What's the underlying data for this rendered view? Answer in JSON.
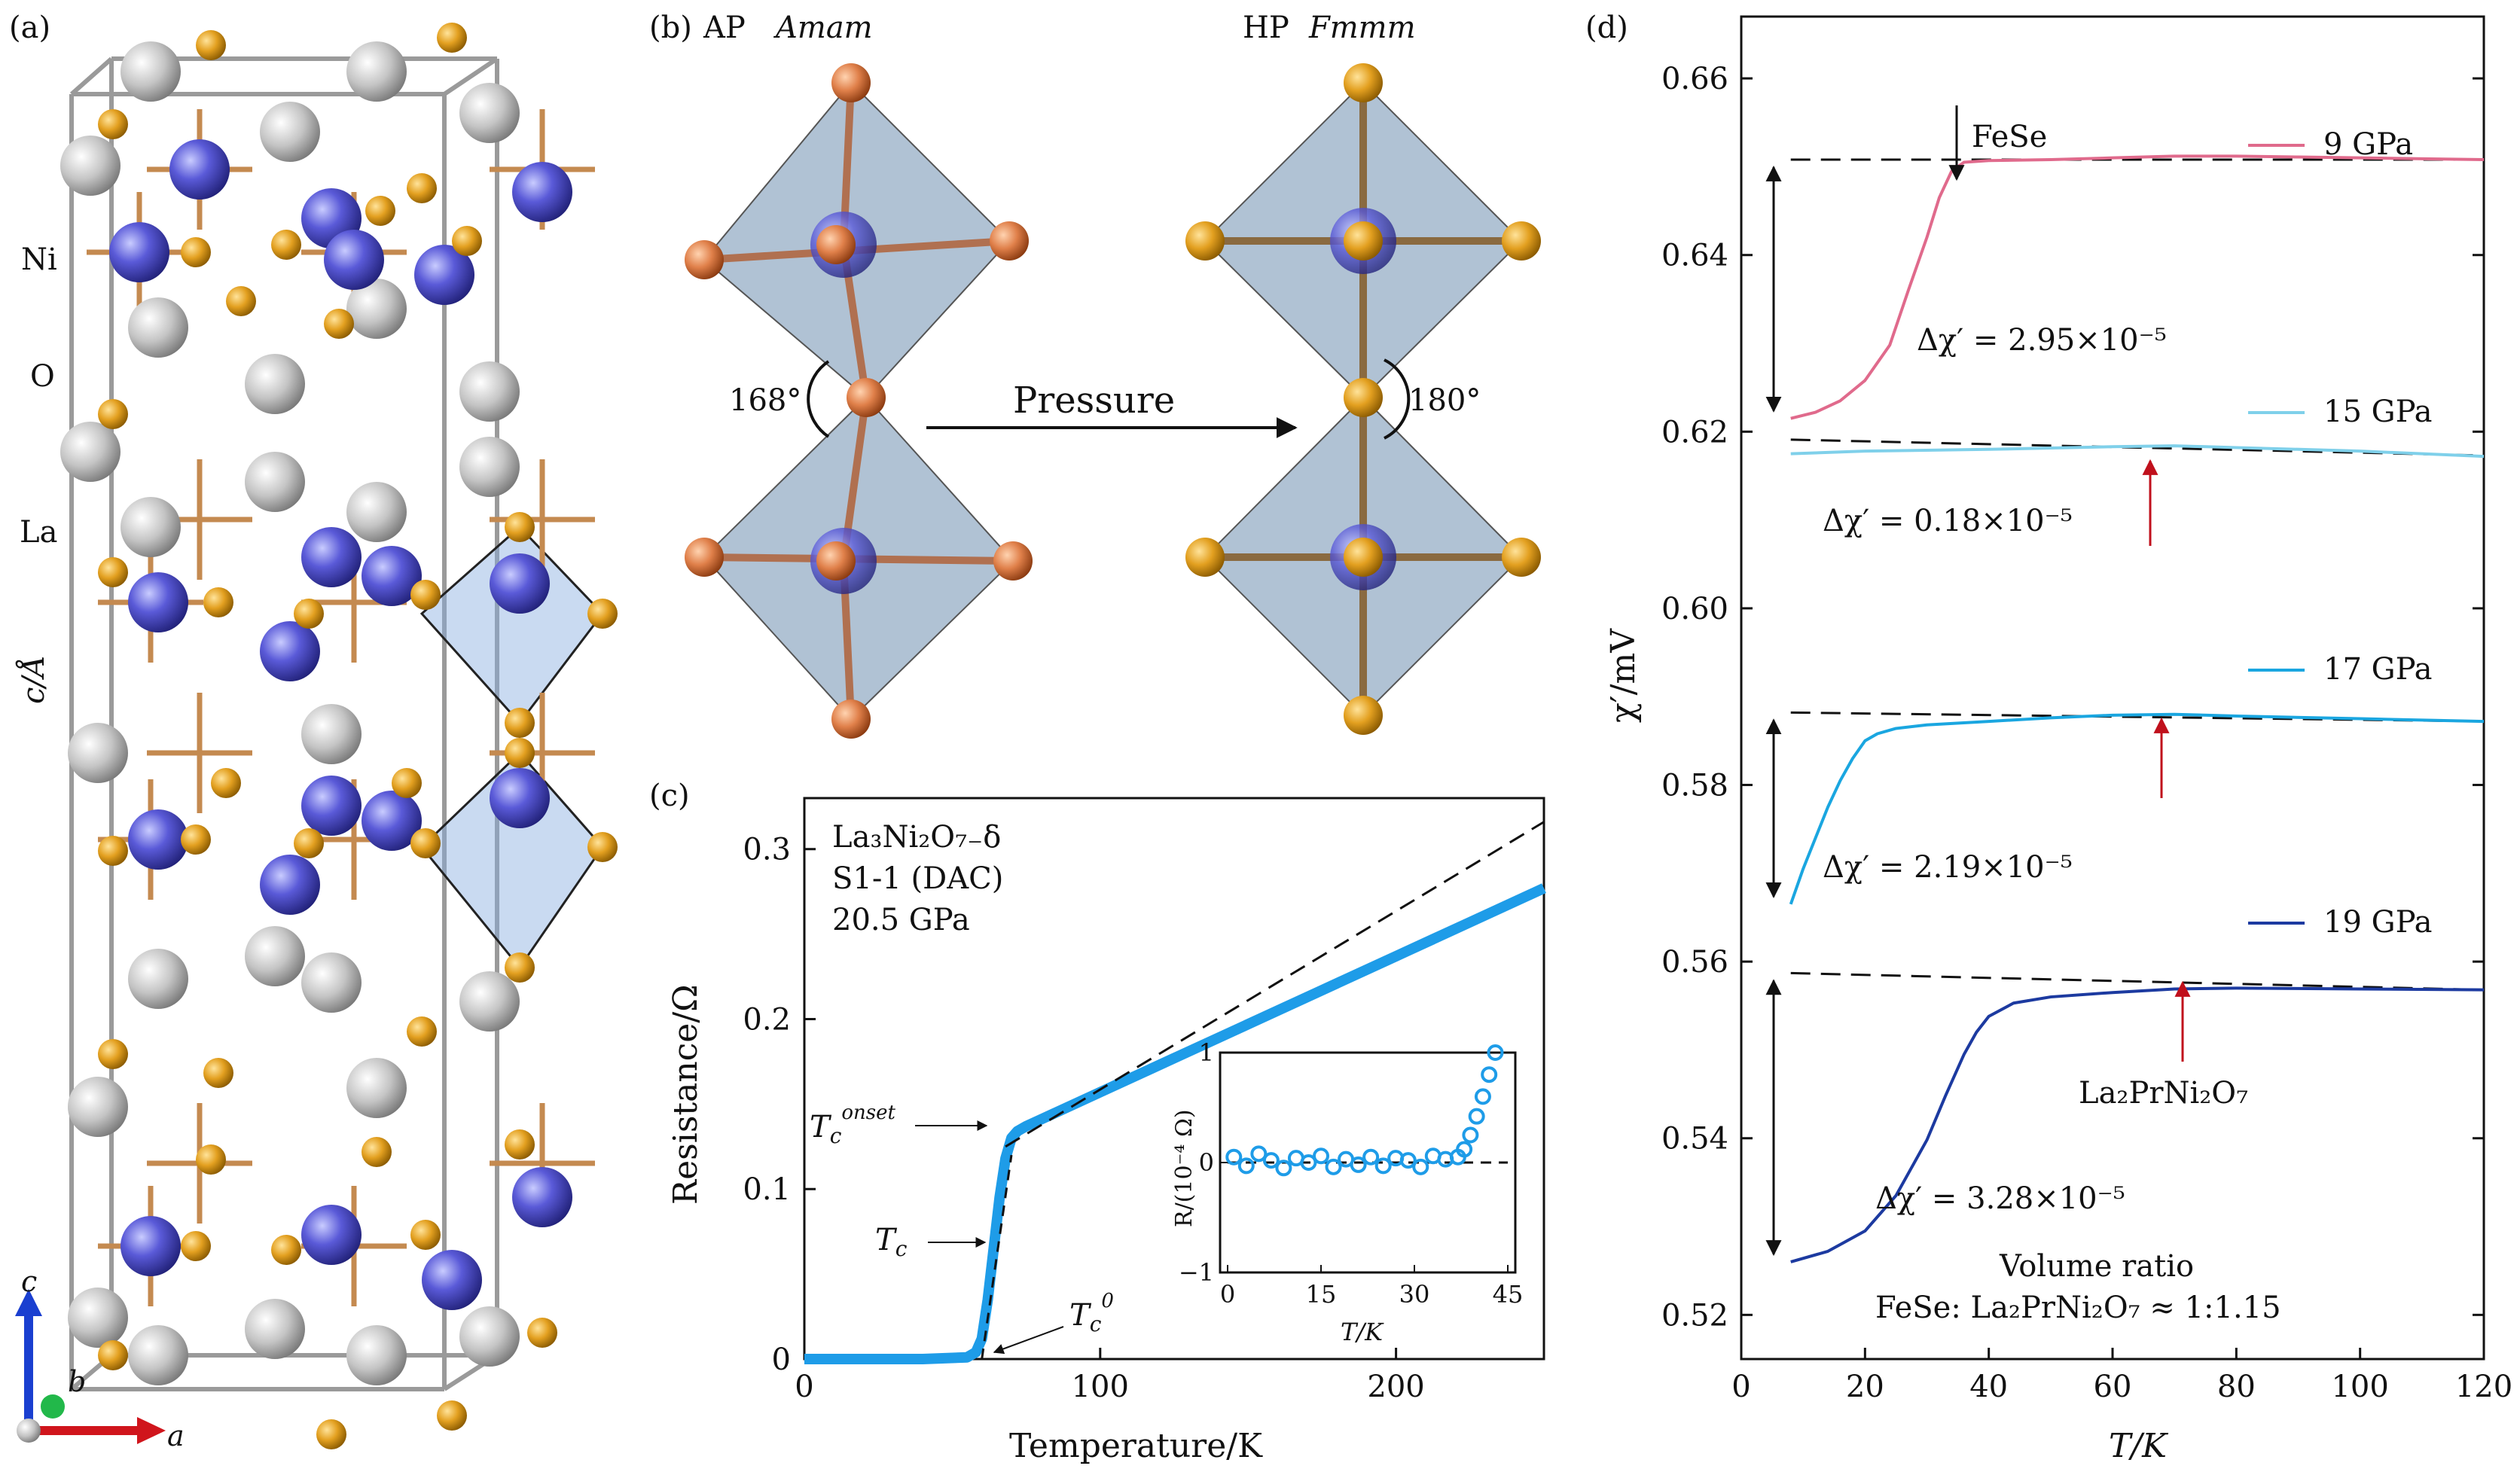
{
  "panels": {
    "a": {
      "label": "(a)",
      "atoms": [
        "Ni",
        "O",
        "La"
      ],
      "axis_label": "c/Å",
      "basis": {
        "c": "c",
        "b": "b",
        "a": "a"
      }
    },
    "b": {
      "label": "(b)",
      "left_title": "AP",
      "left_group": "Amam",
      "right_title": "HP",
      "right_group": "Fmmm",
      "angle_left": "168°",
      "angle_right": "180°",
      "arrow_label": "Pressure"
    },
    "c": {
      "label": "(c)"
    },
    "d": {
      "label": "(d)"
    }
  },
  "chart_data": [
    {
      "id": "c",
      "type": "line",
      "xlabel": "Temperature/K",
      "ylabel": "Resistance/Ω",
      "xlim": [
        0,
        250
      ],
      "ylim": [
        0,
        0.33
      ],
      "xticks": [
        0,
        100,
        200
      ],
      "yticks": [
        0,
        0.1,
        0.2,
        0.3
      ],
      "xtick_labels": [
        "0",
        "100",
        "200"
      ],
      "ytick_labels": [
        "0",
        "0.1",
        "0.2",
        "0.3"
      ],
      "info": [
        "La₃Ni₂O₇₋δ",
        "S1-1 (DAC)",
        "20.5 GPa"
      ],
      "annotations": {
        "tc_onset": "T_c^onset",
        "tc": "T_c",
        "tc0": "T_c^0"
      },
      "color": "#1e9ce8",
      "series": [
        {
          "x": [
            0,
            20,
            40,
            55,
            58,
            60,
            62,
            64,
            66,
            68,
            70,
            72,
            75,
            80,
            100,
            125,
            150,
            175,
            200,
            225,
            250
          ],
          "y": [
            0,
            0,
            0,
            0.001,
            0.004,
            0.012,
            0.035,
            0.065,
            0.095,
            0.118,
            0.13,
            0.134,
            0.137,
            0.141,
            0.157,
            0.177,
            0.197,
            0.217,
            0.237,
            0.257,
            0.277
          ]
        }
      ],
      "fit_line": {
        "x": [
          68,
          250
        ],
        "y": [
          0.125,
          0.316
        ]
      },
      "inset": {
        "xlabel": "T/K",
        "ylabel": "R/(10⁻⁴ Ω)",
        "xlim": [
          0,
          45
        ],
        "ylim": [
          -1,
          1
        ],
        "xticks": [
          0,
          15,
          30,
          45
        ],
        "yticks": [
          -1,
          0,
          1
        ],
        "xtick_labels": [
          "0",
          "15",
          "30",
          "45"
        ],
        "ytick_labels": [
          "−1",
          "0",
          "1"
        ],
        "x": [
          1,
          3,
          5,
          7,
          9,
          11,
          13,
          15,
          17,
          19,
          21,
          23,
          25,
          27,
          29,
          31,
          33,
          35,
          37,
          38,
          39,
          40,
          41,
          42,
          43
        ],
        "y": [
          0.05,
          -0.03,
          0.08,
          0.02,
          -0.05,
          0.04,
          0.0,
          0.06,
          -0.04,
          0.03,
          -0.02,
          0.05,
          -0.03,
          0.04,
          0.02,
          -0.04,
          0.06,
          0.03,
          0.05,
          0.12,
          0.25,
          0.42,
          0.6,
          0.8,
          1.0
        ]
      }
    },
    {
      "id": "d",
      "type": "line",
      "xlabel": "T/K",
      "ylabel": "χ′/mV",
      "xlim": [
        0,
        120
      ],
      "ylim": [
        0.515,
        0.667
      ],
      "xticks": [
        0,
        20,
        40,
        60,
        80,
        100,
        120
      ],
      "yticks": [
        0.52,
        0.54,
        0.56,
        0.58,
        0.6,
        0.62,
        0.64,
        0.66
      ],
      "xtick_labels": [
        "0",
        "20",
        "40",
        "60",
        "80",
        "100",
        "120"
      ],
      "ytick_labels": [
        "0.52",
        "0.54",
        "0.56",
        "0.58",
        "0.60",
        "0.62",
        "0.64",
        "0.66"
      ],
      "series": [
        {
          "name": "9 GPa",
          "color": "#e06a8c",
          "x": [
            8,
            12,
            16,
            20,
            24,
            27,
            30,
            32,
            34,
            36,
            40,
            50,
            60,
            70,
            80,
            90,
            100,
            110,
            120
          ],
          "y": [
            0.6215,
            0.6222,
            0.6235,
            0.6258,
            0.6298,
            0.636,
            0.642,
            0.6465,
            0.6495,
            0.6505,
            0.6507,
            0.6508,
            0.651,
            0.6512,
            0.6512,
            0.6511,
            0.651,
            0.6509,
            0.6508
          ]
        },
        {
          "name": "15 GPa",
          "color": "#7fd0ea",
          "x": [
            8,
            20,
            40,
            60,
            70,
            80,
            100,
            120
          ],
          "y": [
            0.6175,
            0.6178,
            0.618,
            0.6183,
            0.6184,
            0.6182,
            0.6178,
            0.6172
          ]
        },
        {
          "name": "17 GPa",
          "color": "#1aa6e0",
          "x": [
            8,
            10,
            12,
            14,
            16,
            18,
            20,
            22,
            25,
            30,
            40,
            50,
            60,
            70,
            80,
            100,
            120
          ],
          "y": [
            0.5665,
            0.5705,
            0.574,
            0.5775,
            0.5805,
            0.583,
            0.585,
            0.5858,
            0.5864,
            0.5868,
            0.5872,
            0.5876,
            0.5879,
            0.588,
            0.5878,
            0.5875,
            0.5872
          ]
        },
        {
          "name": "19 GPa",
          "color": "#1c3aa0",
          "x": [
            8,
            14,
            20,
            25,
            30,
            33,
            36,
            38,
            40,
            44,
            50,
            60,
            70,
            80,
            100,
            120
          ],
          "y": [
            0.526,
            0.5272,
            0.5295,
            0.5335,
            0.5398,
            0.5448,
            0.5495,
            0.552,
            0.5538,
            0.5553,
            0.556,
            0.5565,
            0.5569,
            0.557,
            0.5569,
            0.5568
          ]
        }
      ],
      "baselines": [
        {
          "x": [
            8,
            120
          ],
          "y": [
            0.6508,
            0.6508
          ]
        },
        {
          "x": [
            8,
            120
          ],
          "y": [
            0.6191,
            0.6173
          ]
        },
        {
          "x": [
            8,
            120
          ],
          "y": [
            0.5882,
            0.5872
          ]
        },
        {
          "x": [
            8,
            120
          ],
          "y": [
            0.5587,
            0.5568
          ]
        }
      ],
      "deltas": [
        {
          "label": "Δχ′ = 2.95×10⁻⁵",
          "x": 4,
          "y_from": 0.6508,
          "y_to": 0.6215
        },
        {
          "label": "Δχ′ = 0.18×10⁻⁵",
          "x": null
        },
        {
          "label": "Δχ′ = 2.19×10⁻⁵",
          "x": 4,
          "y_from": 0.5882,
          "y_to": 0.5665
        },
        {
          "label": "Δχ′ = 3.28×10⁻⁵",
          "x": 4,
          "y_from": 0.5587,
          "y_to": 0.526
        }
      ],
      "fese_label": "FeSe",
      "lapr_label": "La₂PrNi₂O₇",
      "volume_title": "Volume ratio",
      "volume_value": "FeSe: La₂PrNi₂O₇ ≈ 1:1.15"
    }
  ]
}
